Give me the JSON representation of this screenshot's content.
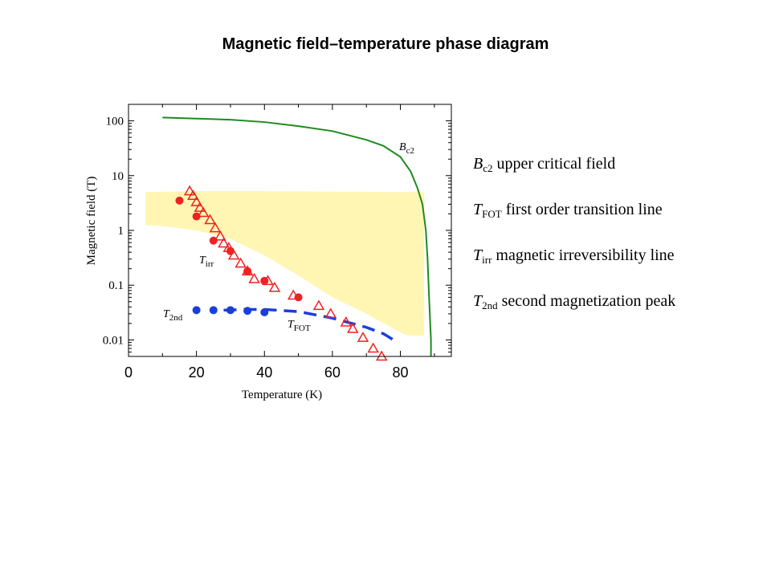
{
  "title": "Magnetic field–temperature phase diagram",
  "colors": {
    "bc2": "#1f8a1f",
    "tirr": "#ee2222",
    "t2nd": "#1a3fd8",
    "fot": "#1a3fd8",
    "shade": "#fff6b0"
  },
  "legend": [
    {
      "sym": "B",
      "sub": "c2",
      "text": "upper critical field"
    },
    {
      "sym": "T",
      "sub": "FOT",
      "text": "first order transition line"
    },
    {
      "sym": "T",
      "sub": "irr",
      "text": "magnetic irreversibility line"
    },
    {
      "sym": "T",
      "sub": "2nd",
      "text": "second magnetization peak"
    }
  ],
  "chart_data": {
    "type": "scatter",
    "title": "Magnetic field–temperature phase diagram",
    "xlabel": "Temperature (K)",
    "ylabel": "Magnetic field (T)",
    "xlim": [
      0,
      95
    ],
    "ylim": [
      0.005,
      200
    ],
    "yscale": "log",
    "xticks": [
      "0",
      "20",
      "40",
      "60",
      "80"
    ],
    "yticks": [
      "100",
      "10",
      "1",
      "0.1",
      "0.01"
    ],
    "annotations": {
      "bc2": {
        "base": "B",
        "sub": "c2"
      },
      "tirr": {
        "base": "T",
        "sub": "irr"
      },
      "t2nd": {
        "base": "T",
        "sub": "2nd"
      },
      "tfot": {
        "base": "T",
        "sub": "FOT"
      }
    },
    "series": [
      {
        "id": "bc2",
        "kind": "line",
        "x": [
          10,
          20,
          30,
          40,
          50,
          60,
          70,
          75,
          80,
          83,
          85,
          86.5,
          87.5,
          88,
          88.5,
          89,
          89
        ],
        "y": [
          115,
          110,
          105,
          95,
          80,
          65,
          45,
          35,
          22,
          12,
          6,
          3,
          1,
          0.3,
          0.05,
          0.01,
          0.004
        ]
      },
      {
        "id": "tirr_circles",
        "kind": "filled-circles",
        "x": [
          15,
          20,
          25,
          30,
          35,
          40,
          50
        ],
        "y": [
          3.5,
          1.8,
          0.65,
          0.42,
          0.18,
          0.12,
          0.06
        ]
      },
      {
        "id": "tirr_triangles",
        "kind": "open-triangles",
        "x": [
          18,
          19,
          20,
          21,
          22,
          24,
          25.5,
          27,
          28,
          29.5,
          31,
          33,
          35,
          37,
          41,
          43,
          48.5,
          56,
          59.5,
          64,
          66,
          69,
          72,
          74.5
        ],
        "y": [
          5.2,
          4.3,
          3.3,
          2.6,
          2.1,
          1.55,
          1.1,
          0.78,
          0.58,
          0.48,
          0.35,
          0.25,
          0.18,
          0.13,
          0.12,
          0.09,
          0.065,
          0.042,
          0.03,
          0.021,
          0.016,
          0.011,
          0.007,
          0.005
        ]
      },
      {
        "id": "t2nd",
        "kind": "filled-circles",
        "x": [
          20,
          25,
          30,
          35,
          40
        ],
        "y": [
          0.035,
          0.035,
          0.035,
          0.034,
          0.032
        ]
      },
      {
        "id": "fot",
        "kind": "dashed-line",
        "x": [
          28,
          35,
          40,
          50,
          60,
          70,
          75,
          78
        ],
        "y": [
          0.035,
          0.036,
          0.036,
          0.033,
          0.025,
          0.017,
          0.013,
          0.01
        ]
      },
      {
        "id": "shade",
        "kind": "band",
        "upper": {
          "x": [
            5,
            20,
            40,
            60,
            80,
            87
          ],
          "y": [
            5,
            5.2,
            5.2,
            5.1,
            5.0,
            5.0
          ]
        },
        "lower": {
          "x": [
            87,
            82,
            78,
            70,
            60,
            50,
            40,
            30,
            20,
            10,
            5
          ],
          "y": [
            0.012,
            0.012,
            0.016,
            0.03,
            0.06,
            0.15,
            0.35,
            0.7,
            1.0,
            1.2,
            1.25
          ]
        }
      }
    ]
  }
}
